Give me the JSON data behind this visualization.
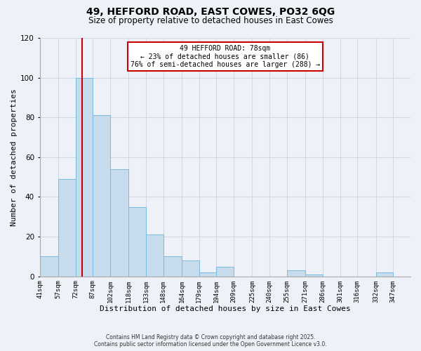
{
  "title": "49, HEFFORD ROAD, EAST COWES, PO32 6QG",
  "subtitle": "Size of property relative to detached houses in East Cowes",
  "xlabel": "Distribution of detached houses by size in East Cowes",
  "ylabel": "Number of detached properties",
  "bar_labels": [
    "41sqm",
    "57sqm",
    "72sqm",
    "87sqm",
    "102sqm",
    "118sqm",
    "133sqm",
    "148sqm",
    "164sqm",
    "179sqm",
    "194sqm",
    "209sqm",
    "225sqm",
    "240sqm",
    "255sqm",
    "271sqm",
    "286sqm",
    "301sqm",
    "316sqm",
    "332sqm",
    "347sqm"
  ],
  "bar_values": [
    10,
    49,
    100,
    81,
    54,
    35,
    21,
    10,
    8,
    2,
    5,
    0,
    0,
    0,
    3,
    1,
    0,
    0,
    0,
    2,
    0
  ],
  "bar_color": "#c6dcec",
  "bar_edge_color": "#7abbe0",
  "bin_edges": [
    41,
    57,
    72,
    87,
    102,
    118,
    133,
    148,
    164,
    179,
    194,
    209,
    225,
    240,
    255,
    271,
    286,
    301,
    316,
    332,
    347,
    362
  ],
  "annotation_line1": "49 HEFFORD ROAD: 78sqm",
  "annotation_line2": "← 23% of detached houses are smaller (86)",
  "annotation_line3": "76% of semi-detached houses are larger (288) →",
  "annotation_box_color": "#ffffff",
  "annotation_box_edge_color": "#cc0000",
  "vline_color": "#cc0000",
  "vline_x": 78,
  "ylim": [
    0,
    120
  ],
  "yticks": [
    0,
    20,
    40,
    60,
    80,
    100,
    120
  ],
  "grid_color": "#d0d8e8",
  "background_color": "#eef2f8",
  "footer_line1": "Contains HM Land Registry data © Crown copyright and database right 2025.",
  "footer_line2": "Contains public sector information licensed under the Open Government Licence v3.0."
}
